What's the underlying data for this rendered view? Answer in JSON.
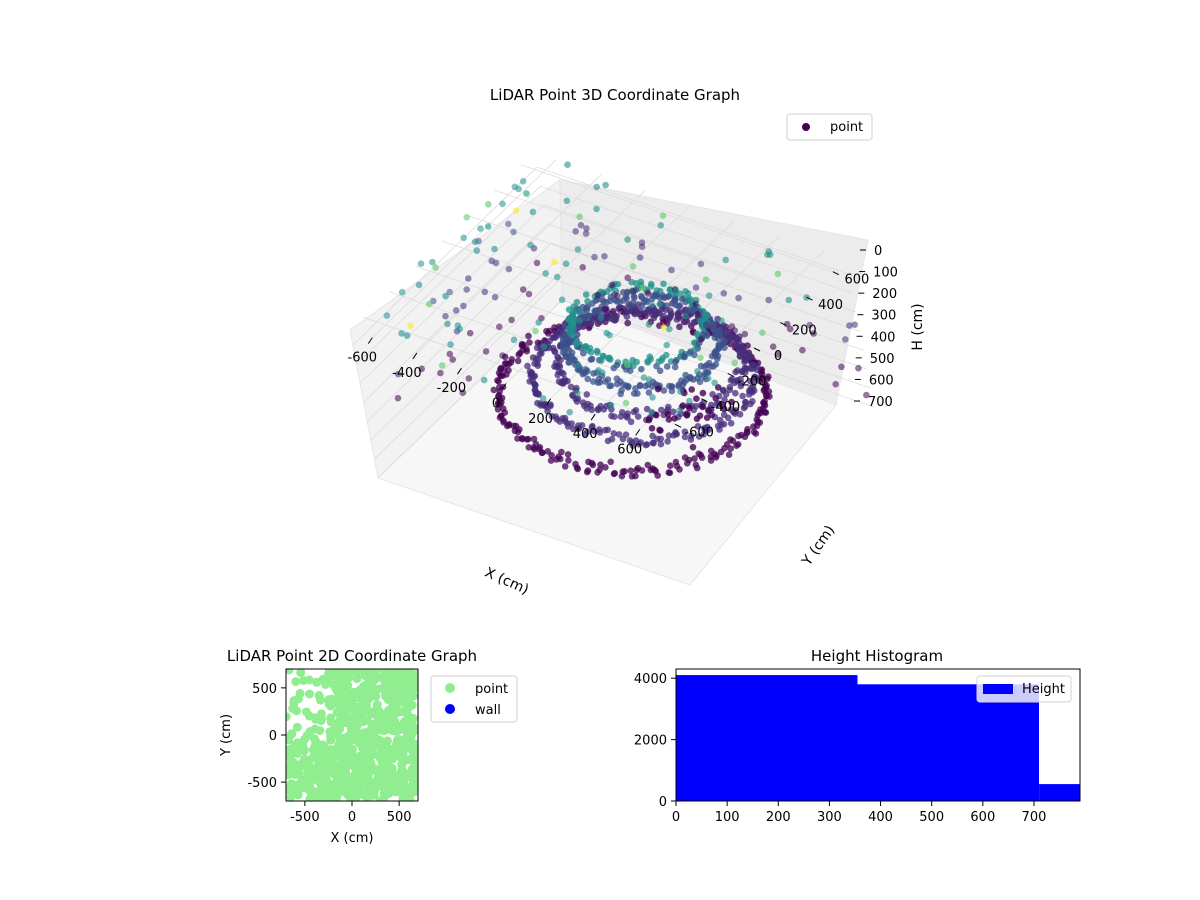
{
  "chart_data": [
    {
      "type": "scatter3d",
      "title": "LiDAR Point 3D Coordinate Graph",
      "xlabel": "X (cm)",
      "ylabel": "Y (cm)",
      "zlabel": "H (cm)",
      "xlim": [
        -700,
        700
      ],
      "ylim": [
        -700,
        700
      ],
      "zlim": [
        0,
        780
      ],
      "z_inverted": true,
      "xticks": [
        -600,
        -400,
        -200,
        0,
        200,
        400,
        600
      ],
      "yticks": [
        -600,
        -400,
        -200,
        0,
        200,
        400,
        600
      ],
      "zticks": [
        0,
        100,
        200,
        300,
        400,
        500,
        600,
        700
      ],
      "grid": true,
      "legend": {
        "entries": [
          "point"
        ],
        "placement": "upper-right"
      },
      "colormap": "viridis",
      "colors": {
        "low": "#440154",
        "mid": "#3b528b",
        "teal": "#21918c",
        "green": "#5ec962",
        "high": "#fde725"
      },
      "series": [
        {
          "name": "point",
          "clusters": [
            {
              "kind": "ring",
              "cx": 0,
              "cy": 100,
              "r": 520,
              "h": 190,
              "count": 90
            },
            {
              "kind": "ring",
              "cx": 80,
              "cy": 80,
              "r": 430,
              "h": 330,
              "count": 80
            },
            {
              "kind": "ring",
              "cx": 150,
              "cy": 50,
              "r": 360,
              "h": 450,
              "count": 70
            },
            {
              "kind": "ring",
              "cx": 150,
              "cy": 30,
              "r": 300,
              "h": 560,
              "count": 70
            },
            {
              "kind": "ring",
              "cx": 150,
              "cy": 20,
              "r": 260,
              "h": 660,
              "count": 60
            },
            {
              "kind": "blob",
              "cx": 200,
              "cy": 150,
              "r": 150,
              "h": 150,
              "count": 30
            },
            {
              "kind": "wall",
              "x": -700,
              "yrange": [
                -500,
                600
              ],
              "hrange": [
                0,
                780
              ],
              "count": 45
            },
            {
              "kind": "wall",
              "y": 700,
              "xrange": [
                -600,
                700
              ],
              "hrange": [
                0,
                500
              ],
              "count": 45
            },
            {
              "kind": "floor",
              "hrange": [
                700,
                780
              ],
              "count": 90
            }
          ]
        }
      ]
    },
    {
      "type": "scatter",
      "title": "LiDAR Point 2D Coordinate Graph",
      "xlabel": "X (cm)",
      "ylabel": "Y (cm)",
      "xlim": [
        -700,
        700
      ],
      "ylim": [
        -700,
        700
      ],
      "xticks": [
        -500,
        0,
        500
      ],
      "yticks": [
        -500,
        0,
        500
      ],
      "legend": {
        "entries": [
          "point",
          "wall"
        ],
        "placement": "outside-right"
      },
      "series": [
        {
          "name": "point",
          "color": "#90ee90",
          "coverage": "dense cloud over most of the square, sparse upper-left"
        },
        {
          "name": "wall",
          "color": "#0000ff",
          "count": 0
        }
      ]
    },
    {
      "type": "bar",
      "title": "Height Histogram",
      "legend": {
        "entries": [
          "Height"
        ],
        "placement": "upper-right"
      },
      "xlim": [
        0,
        790
      ],
      "ylim": [
        0,
        4300
      ],
      "xticks": [
        0,
        100,
        200,
        300,
        400,
        500,
        600,
        700
      ],
      "yticks": [
        0,
        2000,
        4000
      ],
      "color": "#0000ff",
      "bins": [
        {
          "x0": 0,
          "x1": 355,
          "value": 4100
        },
        {
          "x0": 355,
          "x1": 710,
          "value": 3800
        },
        {
          "x0": 710,
          "x1": 790,
          "value": 550
        }
      ],
      "series": [
        {
          "name": "Height"
        }
      ]
    }
  ]
}
